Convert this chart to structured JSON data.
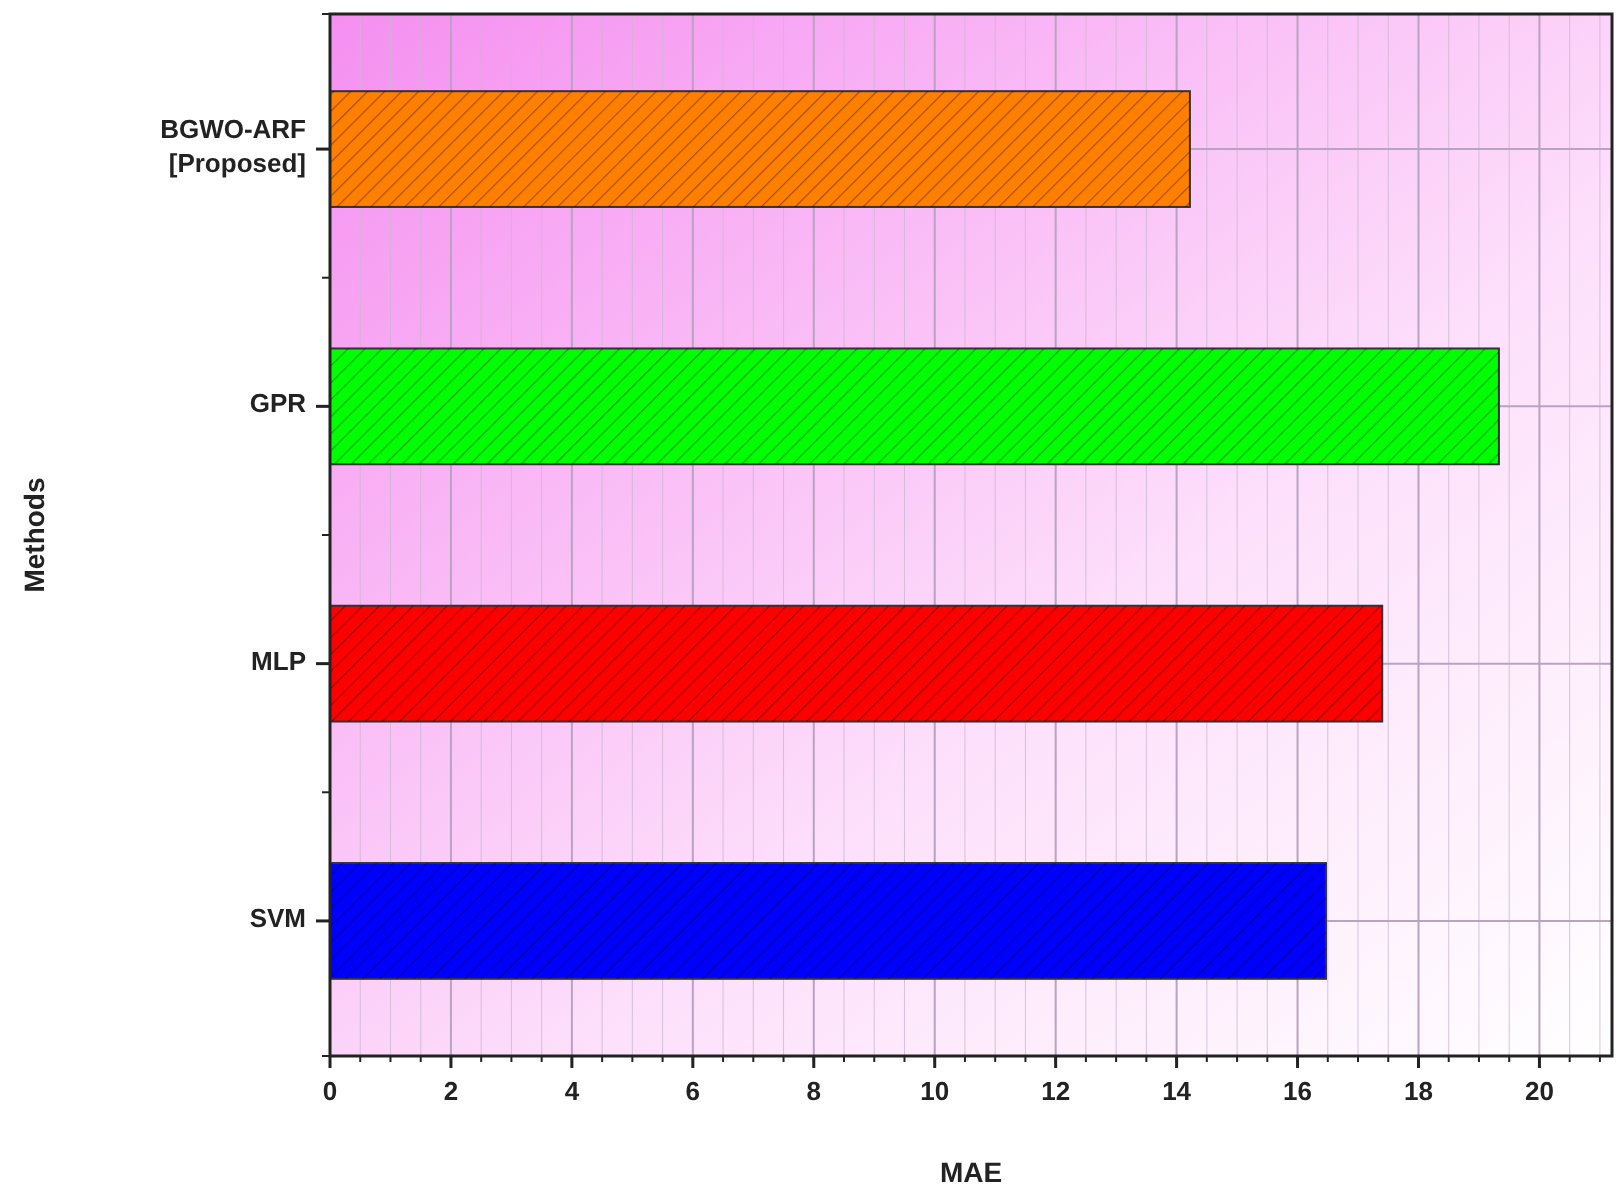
{
  "chart_data": {
    "type": "bar",
    "orientation": "horizontal",
    "categories": [
      "BGWO-ARF [Proposed]",
      "GPR",
      "MLP",
      "SVM"
    ],
    "values": [
      14.22,
      19.33,
      17.4,
      16.47
    ],
    "colors": [
      "#ff7f00",
      "#00ff00",
      "#ff0000",
      "#0000ff"
    ],
    "xlim": [
      0,
      21.2
    ],
    "xticks": [
      0,
      2,
      4,
      6,
      8,
      10,
      12,
      14,
      16,
      18,
      20
    ],
    "xlabel": "MAE",
    "ylabel": "Methods",
    "grid": true
  }
}
